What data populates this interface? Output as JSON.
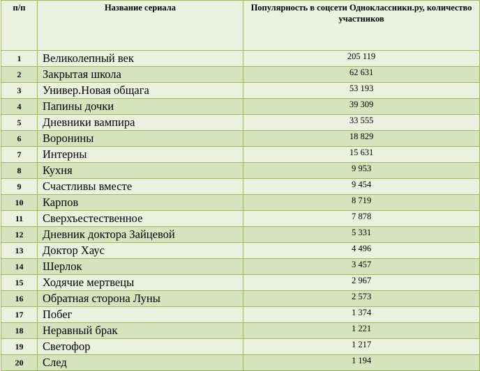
{
  "table": {
    "headers": {
      "num": "п/п",
      "name": "Название сериала",
      "value": "Популярность в соцсети Одноклассники.ру, количество участников"
    },
    "rows": [
      {
        "num": "1",
        "name": "Великолепный век",
        "value": "205 119"
      },
      {
        "num": "2",
        "name": "Закрытая школа",
        "value": "62 631"
      },
      {
        "num": "3",
        "name": "Универ.Новая общага",
        "value": "53 193"
      },
      {
        "num": "4",
        "name": "Папины дочки",
        "value": "39 309"
      },
      {
        "num": "5",
        "name": "Дневники вампира",
        "value": "33 555"
      },
      {
        "num": "6",
        "name": "Воронины",
        "value": "18 829"
      },
      {
        "num": "7",
        "name": "Интерны",
        "value": "15 631"
      },
      {
        "num": "8",
        "name": "Кухня",
        "value": "9 953"
      },
      {
        "num": "9",
        "name": "Счастливы вместе",
        "value": "9 454"
      },
      {
        "num": "10",
        "name": "Карпов",
        "value": "8 719"
      },
      {
        "num": "11",
        "name": "Сверхъестественное",
        "value": "7 878"
      },
      {
        "num": "12",
        "name": "Дневник доктора Зайцевой",
        "value": "5 331"
      },
      {
        "num": "13",
        "name": "Доктор Хаус",
        "value": "4 496"
      },
      {
        "num": "14",
        "name": "Шерлок",
        "value": "3 457"
      },
      {
        "num": "15",
        "name": "Ходячие мертвецы",
        "value": "2 967"
      },
      {
        "num": "16",
        "name": "Обратная сторона Луны",
        "value": "2 573"
      },
      {
        "num": "17",
        "name": "Побег",
        "value": "1 374"
      },
      {
        "num": "18",
        "name": "Неравный брак",
        "value": "1 221"
      },
      {
        "num": "19",
        "name": "Светофор",
        "value": "1 217"
      },
      {
        "num": "20",
        "name": "След",
        "value": "1 194"
      }
    ]
  },
  "colors": {
    "border": "#9bbb59",
    "row_light": "#ebf1de",
    "row_dark": "#d6e3bc"
  }
}
